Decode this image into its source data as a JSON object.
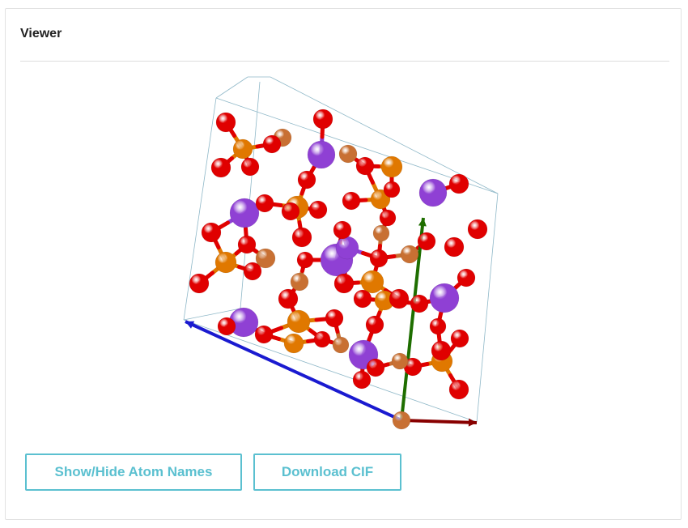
{
  "panel": {
    "title": "Viewer"
  },
  "buttons": {
    "toggle_names_label": "Show/Hide Atom Names",
    "download_cif_label": "Download CIF"
  },
  "colors": {
    "button_accent": "#5bc0d0",
    "oxygen": "#e00000",
    "potassium": "#8f40d4",
    "phosphorus": "#e07800",
    "copper": "#c87033",
    "axis_a": "#880000",
    "axis_b": "#1e6e00",
    "axis_c": "#1a1ad0",
    "cell_edge": "#8fb8c8"
  },
  "structure": {
    "element_legend": [
      "oxygen-atom",
      "potassium-atom",
      "phosphorus-atom",
      "copper-atom"
    ]
  }
}
